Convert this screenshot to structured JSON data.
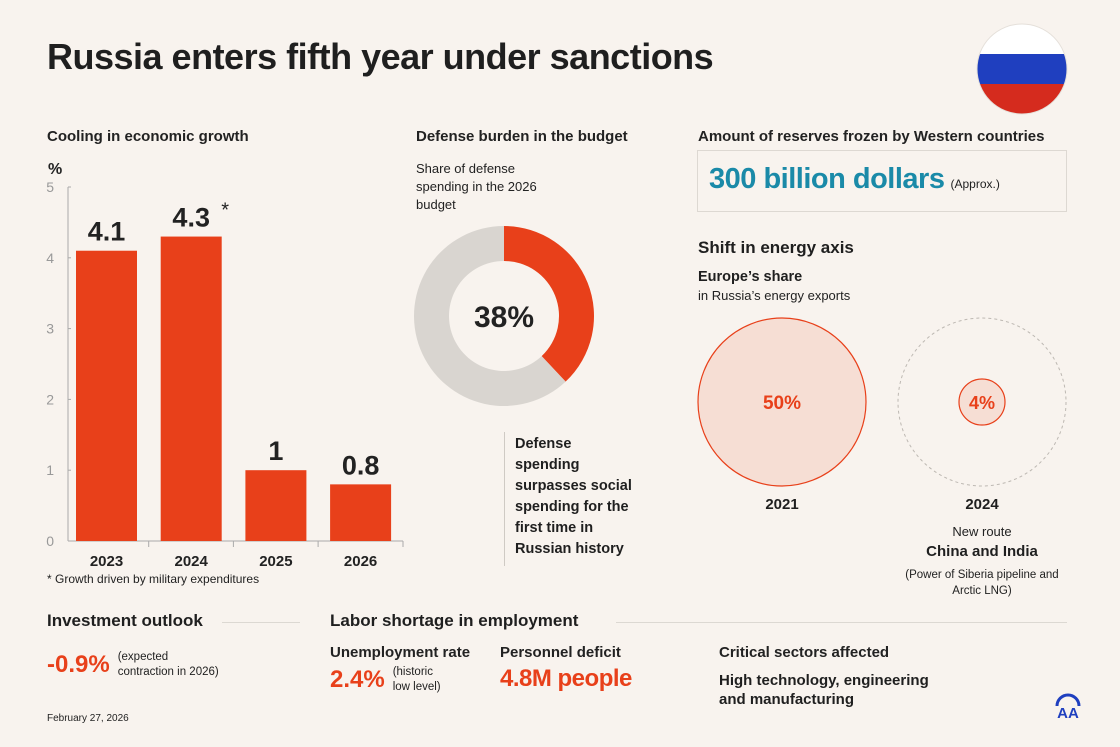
{
  "title": "Russia enters fifth year under sanctions",
  "colors": {
    "accent": "#e8401a",
    "teal": "#1a8aa8",
    "gray": "#d9d5d0",
    "background": "#f8f3ee",
    "flag": [
      "#ffffff",
      "#1f3fbf",
      "#d52b1e"
    ]
  },
  "growth": {
    "heading": "Cooling in economic growth",
    "footnote": "* Growth driven by military expenditures",
    "asterisk": "*"
  },
  "chart_data": [
    {
      "type": "bar",
      "ylabel": "%",
      "categories": [
        "2023",
        "2024",
        "2025",
        "2026"
      ],
      "values": [
        4.1,
        4.3,
        1,
        0.8
      ],
      "value_labels": [
        "4.1",
        "4.3",
        "1",
        "0.8"
      ],
      "ylim": [
        0,
        5
      ],
      "yticks": [
        "0",
        "1",
        "2",
        "3",
        "4",
        "5"
      ],
      "grid": false
    },
    {
      "type": "pie",
      "donut": true,
      "values": [
        38,
        62
      ],
      "center_label": "38%"
    }
  ],
  "defense": {
    "heading": "Defense burden in the budget",
    "subtitle_lines": [
      "Share of defense",
      "spending in the 2026",
      "budget"
    ],
    "note_lines": [
      "Defense",
      "spending",
      "surpasses social",
      "spending for the",
      "first time in",
      "Russian history"
    ]
  },
  "reserves": {
    "heading": "Amount of reserves frozen by Western countries",
    "value": "300 billion dollars",
    "qualifier": "(Approx.)"
  },
  "energy": {
    "heading": "Shift in energy axis",
    "sub1": "Europe’s share",
    "sub2": "in Russia’s energy exports",
    "items": [
      {
        "year": "2021",
        "value": "50%",
        "share": 50
      },
      {
        "year": "2024",
        "value": "4%",
        "share": 4
      }
    ],
    "new_route_label": "New route",
    "new_route": "China and India",
    "route_note_lines": [
      "(Power of Siberia pipeline and",
      "Arctic LNG)"
    ]
  },
  "investment": {
    "heading": "Investment outlook",
    "value": "-0.9%",
    "note_lines": [
      "(expected",
      "contraction in 2026)"
    ]
  },
  "labor": {
    "heading": "Labor shortage in employment",
    "unemployment_label": "Unemployment rate",
    "unemployment_value": "2.4%",
    "unemployment_note_lines": [
      "(historic",
      "low level)"
    ],
    "deficit_label": "Personnel deficit",
    "deficit_value": "4.8M people",
    "sectors_label": "Critical sectors affected",
    "sectors_lines": [
      "High technology, engineering",
      "and manufacturing"
    ]
  },
  "date": "February 27, 2026",
  "logo_text": "AA"
}
